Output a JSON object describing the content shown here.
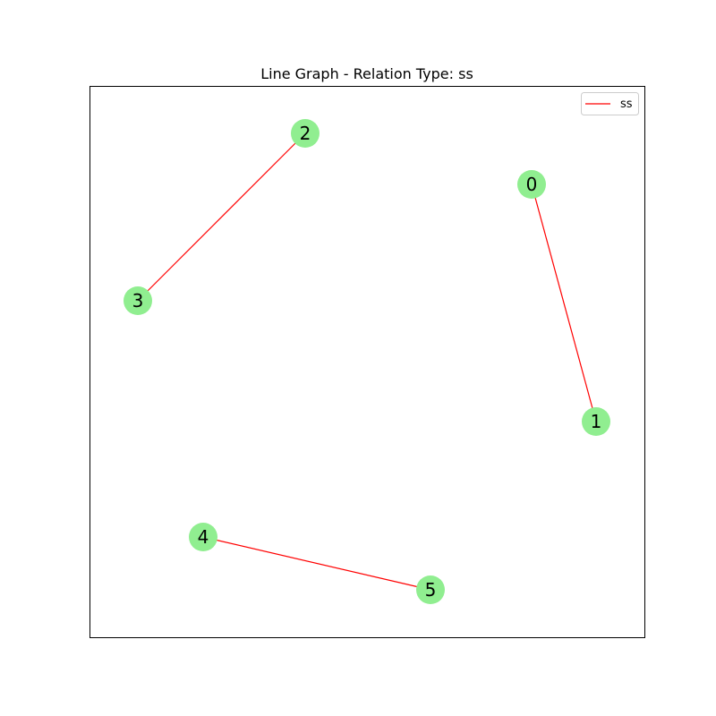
{
  "title": "Line Graph - Relation Type: ss",
  "legend": {
    "label": "ss",
    "color": "#ff0000"
  },
  "colors": {
    "node_fill": "#90ee90",
    "edge": "#ff0000",
    "frame": "#000000"
  },
  "nodes": [
    {
      "id": "0",
      "label": "0"
    },
    {
      "id": "1",
      "label": "1"
    },
    {
      "id": "2",
      "label": "2"
    },
    {
      "id": "3",
      "label": "3"
    },
    {
      "id": "4",
      "label": "4"
    },
    {
      "id": "5",
      "label": "5"
    }
  ],
  "edges": [
    {
      "source": "0",
      "target": "1",
      "relation": "ss"
    },
    {
      "source": "2",
      "target": "3",
      "relation": "ss"
    },
    {
      "source": "4",
      "target": "5",
      "relation": "ss"
    }
  ]
}
